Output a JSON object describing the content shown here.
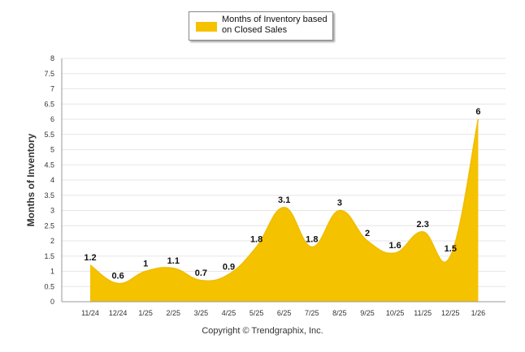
{
  "chart_data": {
    "type": "area",
    "title": "",
    "legend": {
      "label": "Months of Inventory based on Closed Sales",
      "placement": "top-center"
    },
    "ylabel": "Months of Inventory",
    "xlabel": "",
    "ylim": [
      0,
      8
    ],
    "yticks": [
      "0",
      "0.5",
      "1",
      "1.5",
      "2",
      "2.5",
      "3",
      "3.5",
      "4",
      "4.5",
      "5",
      "5.5",
      "6",
      "6.5",
      "7",
      "7.5",
      "8"
    ],
    "categories": [
      "11/24",
      "12/24",
      "1/25",
      "2/25",
      "3/25",
      "4/25",
      "5/25",
      "6/25",
      "7/25",
      "8/25",
      "9/25",
      "10/25",
      "11/25",
      "12/25",
      "1/26"
    ],
    "values": [
      1.2,
      0.6,
      1,
      1.1,
      0.7,
      0.9,
      1.8,
      3.1,
      1.8,
      3,
      2,
      1.6,
      2.3,
      1.5,
      6
    ],
    "value_labels": [
      "1.2",
      "0.6",
      "1",
      "1.1",
      "0.7",
      "0.9",
      "1.8",
      "3.1",
      "1.8",
      "3",
      "2",
      "1.6",
      "2.3",
      "1.5",
      "6"
    ],
    "grid": true,
    "colors": {
      "fill": "#F5C200",
      "stroke": "#F0BC00",
      "grid": "#e6e6e6",
      "axis": "#999999"
    }
  },
  "footer": {
    "copyright": "Copyright © Trendgraphix, Inc."
  }
}
